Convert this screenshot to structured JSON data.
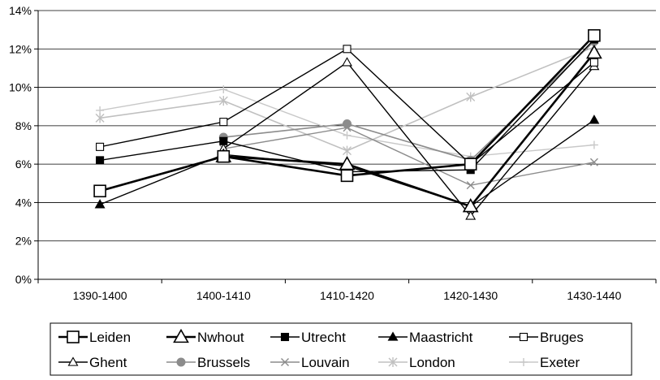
{
  "chart_data": {
    "type": "line",
    "title": "",
    "xlabel": "",
    "ylabel": "",
    "categories": [
      "1390-1400",
      "1400-1410",
      "1410-1420",
      "1420-1430",
      "1430-1440"
    ],
    "y_tick_labels": [
      "0%",
      "2%",
      "4%",
      "6%",
      "8%",
      "10%",
      "12%",
      "14%"
    ],
    "ylim": [
      0,
      14
    ],
    "y_unit": "%",
    "grid": true,
    "legend_position": "bottom",
    "series": [
      {
        "name": "Leiden",
        "values": [
          4.6,
          6.4,
          5.4,
          6.0,
          12.7
        ],
        "color": "#000000",
        "marker": "square-open-large",
        "width": 2.6
      },
      {
        "name": "Nwhout",
        "values": [
          null,
          6.4,
          6.0,
          3.8,
          11.8
        ],
        "color": "#000000",
        "marker": "triangle-open-large",
        "width": 2.6
      },
      {
        "name": "Utrecht",
        "values": [
          6.2,
          7.2,
          5.6,
          5.7,
          12.5
        ],
        "color": "#000000",
        "marker": "square-filled",
        "width": 1.4
      },
      {
        "name": "Maastricht",
        "values": [
          3.9,
          6.5,
          5.9,
          3.8,
          8.3
        ],
        "color": "#000000",
        "marker": "triangle-filled",
        "width": 1.4
      },
      {
        "name": "Bruges",
        "values": [
          6.9,
          8.2,
          12.0,
          6.0,
          11.3
        ],
        "color": "#000000",
        "marker": "square-open",
        "width": 1.4
      },
      {
        "name": "Ghent",
        "values": [
          null,
          6.8,
          11.3,
          3.3,
          11.1
        ],
        "color": "#000000",
        "marker": "triangle-open",
        "width": 1.4
      },
      {
        "name": "Brussels",
        "values": [
          null,
          7.4,
          8.1,
          6.2,
          12.4
        ],
        "color": "#8c8c8c",
        "marker": "circle-filled",
        "width": 1.6
      },
      {
        "name": "Louvain",
        "values": [
          null,
          6.8,
          7.9,
          4.9,
          6.1
        ],
        "color": "#8c8c8c",
        "marker": "x",
        "width": 1.4
      },
      {
        "name": "London",
        "values": [
          8.4,
          9.3,
          6.7,
          9.5,
          12.1
        ],
        "color": "#c0c0c0",
        "marker": "asterisk",
        "width": 1.6
      },
      {
        "name": "Exeter",
        "values": [
          8.8,
          9.9,
          7.5,
          6.4,
          7.0
        ],
        "color": "#c8c8c8",
        "marker": "plus",
        "width": 1.4
      }
    ]
  }
}
